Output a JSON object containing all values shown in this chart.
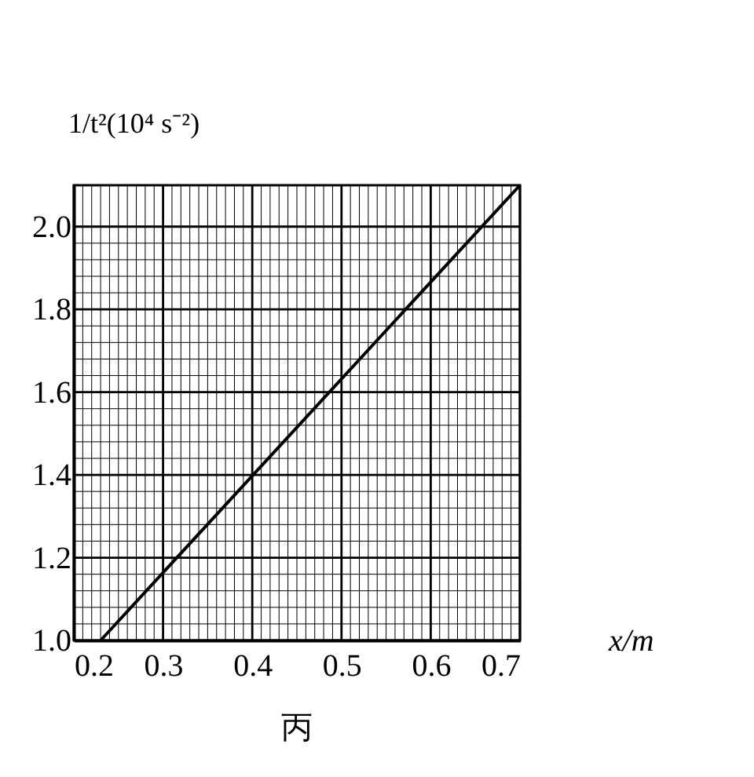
{
  "chart_data": {
    "type": "line",
    "xlabel": "x/m",
    "ylabel": "1/t²(10⁴ s⁻²)",
    "x": [
      0.23,
      0.7
    ],
    "series": [
      {
        "color": "#000000",
        "values": [
          1.0,
          2.1
        ]
      }
    ],
    "xlim": [
      0.2,
      0.7
    ],
    "xticks": [
      0.2,
      0.3,
      0.4,
      0.5,
      0.6,
      0.7
    ],
    "ylim": [
      1.0,
      2.1
    ],
    "yticks": [
      {
        "value": 1.0,
        "label": "1.0"
      },
      {
        "value": 1.2,
        "label": "1.2"
      },
      {
        "value": 1.4,
        "label": "1.4"
      },
      {
        "value": 1.6,
        "label": "1.6"
      },
      {
        "value": 1.8,
        "label": "1.8"
      },
      {
        "value": 2.0,
        "label": "2.0"
      }
    ],
    "grid": true,
    "marker": "none",
    "line_style": "solid",
    "annotations": [
      "丙"
    ]
  }
}
